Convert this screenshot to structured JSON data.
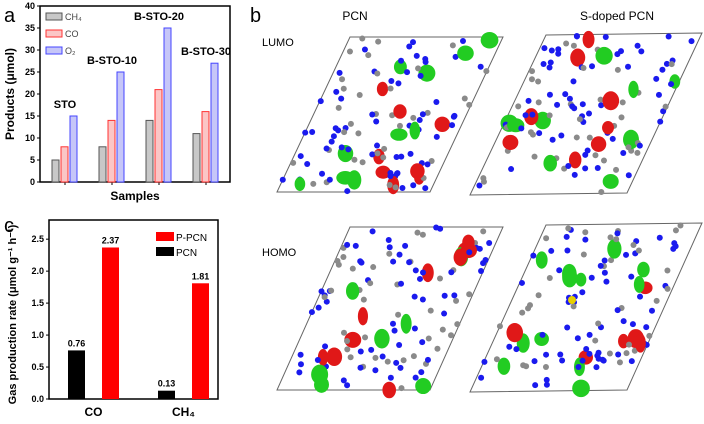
{
  "panels": {
    "a": "a",
    "b": "b",
    "c": "c"
  },
  "chart_data": [
    {
      "type": "bar",
      "panel": "a",
      "categories": [
        "STO",
        "B-STO-10",
        "B-STO-20",
        "B-STO-30"
      ],
      "series": [
        {
          "name": "CH₄",
          "values": [
            5,
            8,
            14,
            11
          ],
          "fill": "#c8c8c8",
          "stroke": "#555555"
        },
        {
          "name": "CO",
          "values": [
            8,
            14,
            21,
            16
          ],
          "fill": "#fbc6c6",
          "stroke": "#ff3333"
        },
        {
          "name": "O₂",
          "values": [
            15,
            25,
            35,
            27
          ],
          "fill": "#c6c6f8",
          "stroke": "#4444ff"
        }
      ],
      "xlabel": "Samples",
      "ylabel": "Products (μmol)",
      "ylim": [
        0,
        40
      ],
      "yticks": [
        0,
        5,
        10,
        15,
        20,
        25,
        30,
        35,
        40
      ],
      "legend": "top-left",
      "grid": false
    },
    {
      "type": "bar",
      "panel": "c",
      "categories": [
        "CO",
        "CH₄"
      ],
      "series": [
        {
          "name": "PCN",
          "values": [
            0.76,
            0.13
          ],
          "fill": "#000000"
        },
        {
          "name": "P-PCN",
          "values": [
            2.37,
            1.81
          ],
          "fill": "#ff0000"
        }
      ],
      "data_labels": [
        [
          "0.76",
          "0.13"
        ],
        [
          "2.37",
          "1.81"
        ]
      ],
      "ylabel": "Gas production rate (μmol g⁻¹ h⁻¹)",
      "ylim": [
        0,
        2.8
      ],
      "yticks": [
        "0.0",
        "0.5",
        "1.0",
        "1.5",
        "2.0",
        "2.5"
      ],
      "legend": "top-right",
      "grid": false
    }
  ],
  "orbitals": {
    "columns": [
      "PCN",
      "S-doped PCN"
    ],
    "rows": [
      "LUMO",
      "HOMO"
    ],
    "colors": {
      "positive": "#e01818",
      "negative": "#22cc22",
      "nitrogen": "#1a1aee",
      "carbon": "#8a8a8a",
      "sulfur": "#e8d000"
    }
  }
}
